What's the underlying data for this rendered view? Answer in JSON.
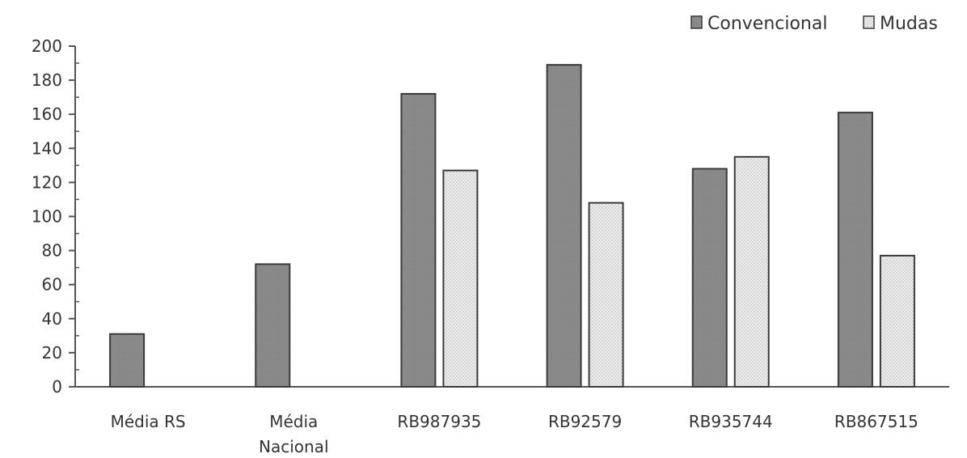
{
  "chart_data": {
    "type": "bar",
    "title": "",
    "xlabel": "",
    "ylabel": "",
    "ylim": [
      0,
      200
    ],
    "ytick_step": 20,
    "categories": [
      [
        "Média RS"
      ],
      [
        "Média",
        "Nacional"
      ],
      [
        "RB987935"
      ],
      [
        "RB92579"
      ],
      [
        "RB935744"
      ],
      [
        "RB867515"
      ]
    ],
    "yticks": [
      "0",
      "20",
      "40",
      "60",
      "80",
      "100",
      "120",
      "140",
      "160",
      "180",
      "200"
    ],
    "series": [
      {
        "name": "Convencional",
        "color": "#8c8c8c",
        "pattern": "solid",
        "values": [
          31,
          72,
          172,
          189,
          128,
          161
        ]
      },
      {
        "name": "Mudas",
        "color": "#e3e3e3",
        "pattern": "dotted",
        "values": [
          null,
          null,
          127,
          108,
          135,
          77
        ]
      }
    ],
    "legend_position": "top-right",
    "grid": false
  }
}
